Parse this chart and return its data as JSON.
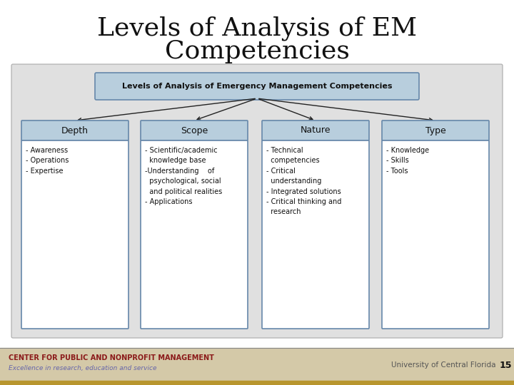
{
  "title_line1": "Levels of Analysis of EM",
  "title_line2": "Competencies",
  "title_fontsize": 26,
  "bg_color": "#ffffff",
  "diagram_bg": "#e0e0e0",
  "top_box_text": "Levels of Analysis of Emergency Management Competencies",
  "top_box_color": "#b8cedd",
  "top_box_border": "#6688aa",
  "category_box_color": "#b8cedd",
  "category_box_border": "#6688aa",
  "detail_box_color": "#ffffff",
  "detail_box_border": "#6688aa",
  "categories": [
    "Depth",
    "Scope",
    "Nature",
    "Type"
  ],
  "details": [
    "- Awareness\n- Operations\n- Expertise",
    "- Scientific/academic\n  knowledge base\n-Understanding    of\n  psychological, social\n  and political realities\n- Applications",
    "- Technical\n  competencies\n- Critical\n  understanding\n- Integrated solutions\n- Critical thinking and\n  research",
    "- Knowledge\n- Skills\n- Tools"
  ],
  "footer_bg": "#d4c9a8",
  "footer_bar": "#b8962e",
  "footer_left_bold": "CENTER FOR PUBLIC AND NONPROFIT MANAGEMENT",
  "footer_left_italic": "Excellence in research, education and service",
  "footer_right": "University of Central Florida",
  "footer_number": "15",
  "footer_left_color": "#8b1a1a",
  "footer_italic_color": "#6666aa",
  "footer_right_color": "#555555"
}
